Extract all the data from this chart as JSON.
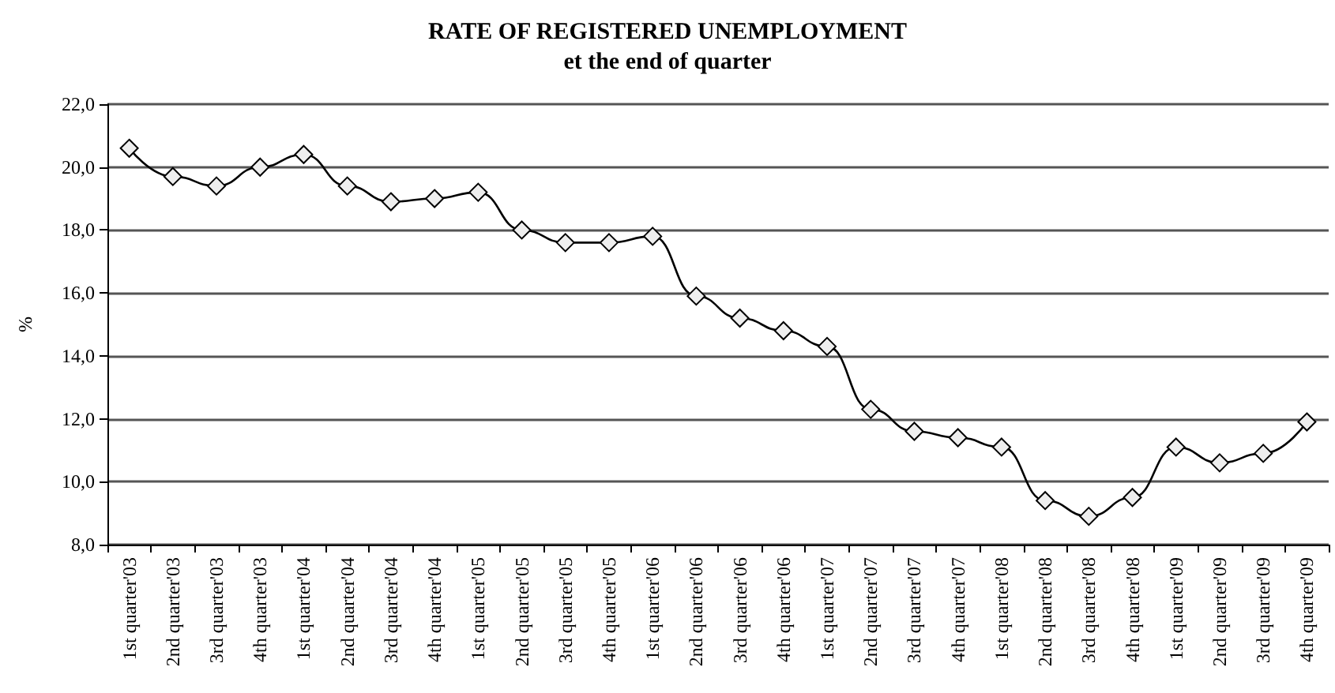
{
  "chart_data": {
    "type": "line",
    "title": "RATE OF REGISTERED UNEMPLOYMENT",
    "subtitle": "et the end of quarter",
    "ylabel": "%",
    "categories": [
      "1st quarter'03",
      "2nd quarter'03",
      "3rd quarter'03",
      "4th quarter'03",
      "1st quarter'04",
      "2nd quarter'04",
      "3rd quarter'04",
      "4th quarter'04",
      "1st quarter'05",
      "2nd quarter'05",
      "3rd quarter'05",
      "4th quarter'05",
      "1st quarter'06",
      "2nd quarter'06",
      "3rd quarter'06",
      "4th quarter'06",
      "1st quarter'07",
      "2nd quarter'07",
      "3rd quarter'07",
      "4th quarter'07",
      "1st quarter'08",
      "2nd quarter'08",
      "3rd quarter'08",
      "4th quarter'08",
      "1st quarter'09",
      "2nd quarter'09",
      "3rd quarter'09",
      "4th quarter'09"
    ],
    "series": [
      {
        "color": "#000000",
        "values": [
          20.6,
          19.7,
          19.4,
          20.0,
          20.4,
          19.4,
          18.9,
          19.0,
          19.2,
          18.0,
          17.6,
          17.6,
          17.8,
          15.9,
          15.2,
          14.8,
          14.3,
          12.3,
          11.6,
          11.4,
          11.1,
          9.4,
          8.9,
          9.5,
          11.1,
          10.6,
          10.9,
          11.9
        ]
      }
    ],
    "ylim": [
      8,
      22
    ],
    "yticks": [
      {
        "value": 8,
        "label": "8,0"
      },
      {
        "value": 10,
        "label": "10,0"
      },
      {
        "value": 12,
        "label": "12,0"
      },
      {
        "value": 14,
        "label": "14,0"
      },
      {
        "value": 16,
        "label": "16,0"
      },
      {
        "value": 18,
        "label": "18,0"
      },
      {
        "value": 20,
        "label": "20,0"
      },
      {
        "value": 22,
        "label": "22,0"
      }
    ],
    "grid": "y",
    "marker": "diamond",
    "line_style": "solid"
  }
}
